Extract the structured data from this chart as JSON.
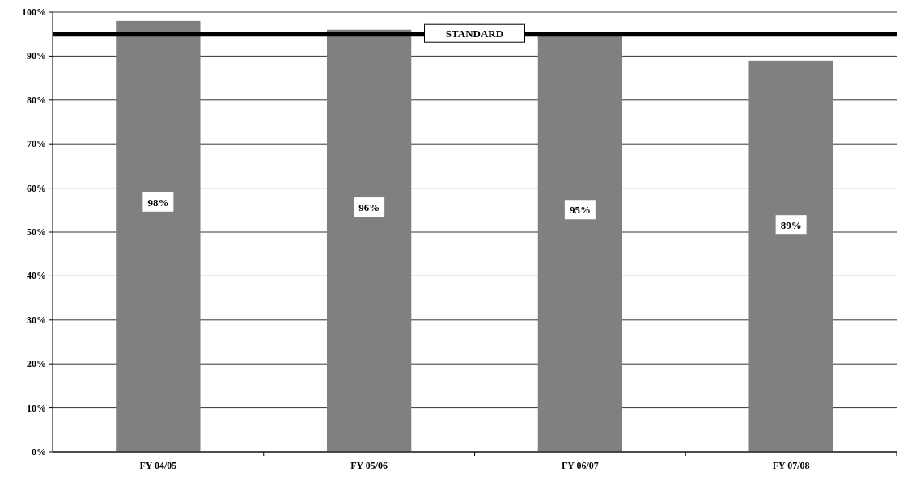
{
  "chart_data": {
    "type": "bar",
    "categories": [
      "FY 04/05",
      "FY 05/06",
      "FY 06/07",
      "FY 07/08"
    ],
    "values": [
      98,
      96,
      95,
      89
    ],
    "color": "#808080",
    "value_labels": [
      "98%",
      "96%",
      "95%",
      "89%"
    ],
    "ylim": [
      0,
      100
    ],
    "yticks": [
      {
        "value": 0,
        "label": "0%"
      },
      {
        "value": 10,
        "label": "10%"
      },
      {
        "value": 20,
        "label": "20%"
      },
      {
        "value": 30,
        "label": "30%"
      },
      {
        "value": 40,
        "label": "40%"
      },
      {
        "value": 50,
        "label": "50%"
      },
      {
        "value": 60,
        "label": "60%"
      },
      {
        "value": 70,
        "label": "70%"
      },
      {
        "value": 80,
        "label": "80%"
      },
      {
        "value": 90,
        "label": "90%"
      },
      {
        "value": 100,
        "label": "100%"
      }
    ],
    "grid": "y",
    "ref_lines": [
      {
        "axis": "y",
        "value": 95,
        "label": "STANDARD",
        "color": "#000000"
      }
    ]
  }
}
